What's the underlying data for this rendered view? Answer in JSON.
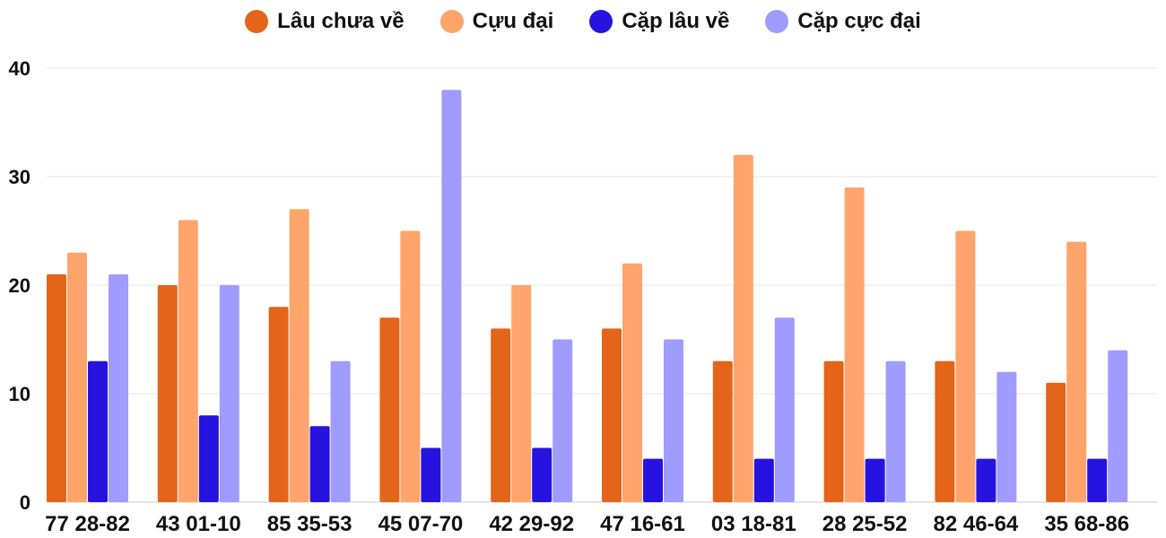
{
  "chart_data": {
    "type": "bar",
    "categories": [
      "77 28-82",
      "43 01-10",
      "85 35-53",
      "45 07-70",
      "42 29-92",
      "47 16-61",
      "03 18-81",
      "28 25-52",
      "82 46-64",
      "35 68-86"
    ],
    "series": [
      {
        "name": "Lâu chưa về",
        "color": "#e4641a",
        "values": [
          21,
          20,
          18,
          17,
          16,
          16,
          13,
          13,
          13,
          11
        ]
      },
      {
        "name": "Cựu đại",
        "color": "#ffa46b",
        "values": [
          23,
          26,
          27,
          25,
          20,
          22,
          32,
          29,
          25,
          24
        ]
      },
      {
        "name": "Cặp lâu về",
        "color": "#2613e0",
        "values": [
          13,
          8,
          7,
          5,
          5,
          4,
          4,
          4,
          4,
          4
        ]
      },
      {
        "name": "Cặp cực đại",
        "color": "#a09bff",
        "values": [
          21,
          20,
          13,
          38,
          15,
          15,
          17,
          13,
          12,
          14
        ]
      }
    ],
    "yticks": [
      "0",
      "10",
      "20",
      "30",
      "40"
    ],
    "ylim": [
      0,
      40
    ],
    "grid": true,
    "legend": "top"
  }
}
